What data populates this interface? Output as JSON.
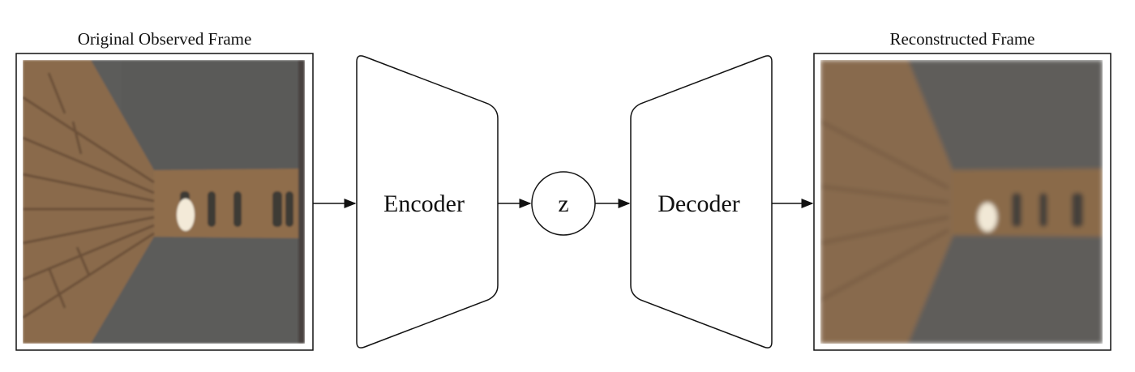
{
  "frames": {
    "original": {
      "title": "Original Observed Frame"
    },
    "reconstructed": {
      "title": "Reconstructed Frame"
    }
  },
  "encoder": {
    "label": "Encoder"
  },
  "latent": {
    "label": "z"
  },
  "decoder": {
    "label": "Decoder"
  },
  "colors": {
    "stroke": "#111111",
    "brick": "#8a6a4c",
    "brick_dark": "#6f533a",
    "floor": "#5b5b58",
    "corridor": "#8e6c4a",
    "light": "#f3ead8"
  }
}
